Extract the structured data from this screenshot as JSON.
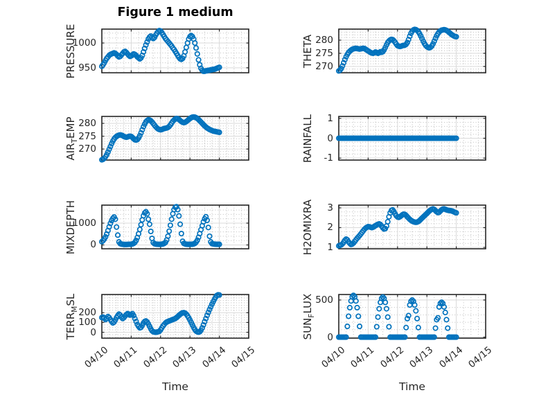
{
  "figure": {
    "title": "Figure 1 medium",
    "xlabel": "Time",
    "marker_color": "#0072BD",
    "background": "#ffffff",
    "axis_color": "#262626",
    "major_grid_color": "#d9d9d9",
    "minor_grid_color": "#bdbdbd"
  },
  "time_axis": {
    "tick_labels": [
      "04/10",
      "04/11",
      "04/12",
      "04/13",
      "04/14",
      "04/15"
    ],
    "tick_hours": [
      0,
      24,
      48,
      72,
      96,
      120
    ],
    "lim_hours": [
      0,
      120
    ],
    "minor_step_hours": 6
  },
  "chart_data": [
    {
      "name": "PRESSURE",
      "type": "scatter",
      "row": 1,
      "col": 1,
      "ylabel": {
        "pre": "PRESSURE",
        "sub": "",
        "post": ""
      },
      "yticks": [
        950,
        1000
      ],
      "ytick_labels": [
        "950",
        "1000"
      ],
      "ylim": [
        940,
        1028
      ],
      "y_minor_step": 10,
      "x_hours_start": 0,
      "x_hours_step": 1,
      "values": [
        953,
        956,
        960,
        965,
        969,
        972,
        975,
        977,
        978,
        979,
        980,
        979,
        977,
        974,
        972,
        973,
        976,
        979,
        982,
        983,
        981,
        978,
        975,
        973,
        974,
        976,
        978,
        977,
        975,
        972,
        970,
        968,
        970,
        975,
        982,
        989,
        996,
        1002,
        1008,
        1012,
        1014,
        1011,
        1009,
        1011,
        1016,
        1020,
        1023,
        1025,
        1024,
        1021,
        1017,
        1013,
        1009,
        1006,
        1003,
        1000,
        997,
        994,
        990,
        987,
        983,
        979,
        975,
        971,
        968,
        967,
        969,
        974,
        982,
        991,
        1000,
        1008,
        1013,
        1015,
        1013,
        1008,
        1000,
        990,
        978,
        966,
        956,
        949,
        945,
        943,
        943,
        944,
        944,
        945,
        945,
        946,
        946,
        947,
        947,
        948,
        949,
        950,
        951
      ]
    },
    {
      "name": "THETA",
      "type": "scatter",
      "row": 1,
      "col": 2,
      "ylabel": {
        "pre": "THETA",
        "sub": "",
        "post": ""
      },
      "yticks": [
        270,
        275,
        280
      ],
      "ytick_labels": [
        "270",
        "275",
        "280"
      ],
      "ylim": [
        267.6,
        284.2
      ],
      "y_minor_step": 1,
      "x_hours_start": 0,
      "x_hours_step": 1,
      "values": [
        268.3,
        268.6,
        269.2,
        270.2,
        271.4,
        272.6,
        273.7,
        274.6,
        275.3,
        275.8,
        276.2,
        276.5,
        276.7,
        276.8,
        276.9,
        276.8,
        276.7,
        276.6,
        276.7,
        276.8,
        276.9,
        276.8,
        276.5,
        276.2,
        275.9,
        275.6,
        275.3,
        275.1,
        275.0,
        275.2,
        275.5,
        275.3,
        275.0,
        275.2,
        275.6,
        275.4,
        275.6,
        276.3,
        277.2,
        278.2,
        279.1,
        279.7,
        280.1,
        280.3,
        280.2,
        279.8,
        279.2,
        278.5,
        277.9,
        277.7,
        277.6,
        277.7,
        277.9,
        278.0,
        278.1,
        278.4,
        279.1,
        280.2,
        281.5,
        282.6,
        283.4,
        283.9,
        284.1,
        284.0,
        283.7,
        283.2,
        282.5,
        281.6,
        280.6,
        279.6,
        278.7,
        278.0,
        277.5,
        277.2,
        277.1,
        277.3,
        277.8,
        278.6,
        279.6,
        280.7,
        281.7,
        282.5,
        283.1,
        283.5,
        283.8,
        283.9,
        284.0,
        283.9,
        283.7,
        283.4,
        283.0,
        282.6,
        282.2,
        281.9,
        281.6,
        281.4,
        281.3
      ]
    },
    {
      "name": "AIR_TEMP",
      "type": "scatter",
      "row": 2,
      "col": 1,
      "ylabel": {
        "pre": "AIR",
        "sub": "T",
        "post": "EMP"
      },
      "yticks": [
        270,
        275,
        280
      ],
      "ytick_labels": [
        "270",
        "275",
        "280"
      ],
      "ylim": [
        265.7,
        282.7
      ],
      "y_minor_step": 1,
      "x_hours_start": 0,
      "x_hours_step": 1,
      "values": [
        265.8,
        266.0,
        266.4,
        267.0,
        267.8,
        268.8,
        269.9,
        271.0,
        272.1,
        273.1,
        273.9,
        274.5,
        274.9,
        275.2,
        275.4,
        275.5,
        275.4,
        275.2,
        274.9,
        274.7,
        274.6,
        274.7,
        274.9,
        275.0,
        274.9,
        274.5,
        274.0,
        273.6,
        273.5,
        273.7,
        274.3,
        275.2,
        276.3,
        277.5,
        278.7,
        279.7,
        280.6,
        281.1,
        281.4,
        281.3,
        281.0,
        280.5,
        279.9,
        279.3,
        278.7,
        278.2,
        277.8,
        277.6,
        277.5,
        277.6,
        277.8,
        278.0,
        278.1,
        278.2,
        278.4,
        278.8,
        279.4,
        280.1,
        280.8,
        281.3,
        281.7,
        281.9,
        281.8,
        281.5,
        281.1,
        280.7,
        280.4,
        280.3,
        280.4,
        280.7,
        281.1,
        281.5,
        281.9,
        282.2,
        282.4,
        282.5,
        282.4,
        282.2,
        281.9,
        281.5,
        281.0,
        280.5,
        280.0,
        279.5,
        279.0,
        278.6,
        278.2,
        277.9,
        277.6,
        277.4,
        277.2,
        277.0,
        276.9,
        276.8,
        276.7,
        276.6,
        276.5
      ]
    },
    {
      "name": "RAINFALL",
      "type": "scatter",
      "row": 2,
      "col": 2,
      "ylabel": {
        "pre": "RAINFALL",
        "sub": "",
        "post": ""
      },
      "yticks": [
        -1,
        0,
        1
      ],
      "ytick_labels": [
        "-1",
        "0",
        "1"
      ],
      "ylim": [
        -1.1,
        1.1
      ],
      "y_minor_step": 0.2,
      "x_hours_start": 0,
      "x_hours_step": 1,
      "values": [
        0,
        0,
        0,
        0,
        0,
        0,
        0,
        0,
        0,
        0,
        0,
        0,
        0,
        0,
        0,
        0,
        0,
        0,
        0,
        0,
        0,
        0,
        0,
        0,
        0,
        0,
        0,
        0,
        0,
        0,
        0,
        0,
        0,
        0,
        0,
        0,
        0,
        0,
        0,
        0,
        0,
        0,
        0,
        0,
        0,
        0,
        0,
        0,
        0,
        0,
        0,
        0,
        0,
        0,
        0,
        0,
        0,
        0,
        0,
        0,
        0,
        0,
        0,
        0,
        0,
        0,
        0,
        0,
        0,
        0,
        0,
        0,
        0,
        0,
        0,
        0,
        0,
        0,
        0,
        0,
        0,
        0,
        0,
        0,
        0,
        0,
        0,
        0,
        0,
        0,
        0,
        0,
        0,
        0,
        0,
        0,
        0
      ]
    },
    {
      "name": "MIXDEPTH",
      "type": "scatter",
      "row": 3,
      "col": 1,
      "ylabel": {
        "pre": "MIXDEPTH",
        "sub": "",
        "post": ""
      },
      "yticks": [
        0,
        1000
      ],
      "ytick_labels": [
        "0",
        "1000"
      ],
      "ylim": [
        -175,
        1825
      ],
      "y_minor_step": 200,
      "x_hours_start": 0,
      "x_hours_step": 1,
      "values": [
        150,
        200,
        270,
        370,
        500,
        660,
        830,
        990,
        1120,
        1220,
        1280,
        1180,
        820,
        450,
        140,
        60,
        40,
        30,
        25,
        20,
        20,
        25,
        28,
        30,
        35,
        45,
        70,
        120,
        210,
        340,
        510,
        710,
        930,
        1150,
        1340,
        1470,
        1520,
        1430,
        1180,
        950,
        620,
        300,
        110,
        55,
        40,
        32,
        28,
        26,
        30,
        36,
        46,
        70,
        120,
        230,
        400,
        630,
        900,
        1180,
        1430,
        1620,
        1730,
        1750,
        1620,
        1330,
        950,
        520,
        170,
        70,
        45,
        33,
        28,
        26,
        28,
        30,
        34,
        45,
        72,
        125,
        215,
        350,
        520,
        700,
        880,
        1060,
        1200,
        1290,
        1130,
        800,
        400,
        140,
        60,
        45,
        38,
        33,
        30,
        28,
        28
      ]
    },
    {
      "name": "H2OMIXRA",
      "type": "scatter",
      "row": 3,
      "col": 2,
      "ylabel": {
        "pre": "H2OMIXRA",
        "sub": "",
        "post": ""
      },
      "yticks": [
        1,
        2,
        3
      ],
      "ytick_labels": [
        "1",
        "2",
        "3"
      ],
      "ylim": [
        0.93,
        3.14
      ],
      "y_minor_step": 0.2,
      "x_hours_start": 0,
      "x_hours_step": 1,
      "values": [
        1.08,
        1.1,
        1.13,
        1.18,
        1.26,
        1.36,
        1.42,
        1.38,
        1.28,
        1.2,
        1.15,
        1.17,
        1.22,
        1.3,
        1.38,
        1.46,
        1.53,
        1.6,
        1.68,
        1.76,
        1.84,
        1.92,
        1.98,
        2.02,
        2.05,
        2.04,
        2.02,
        2.0,
        2.02,
        2.06,
        2.1,
        2.14,
        2.17,
        2.19,
        2.16,
        2.08,
        1.99,
        1.93,
        1.95,
        2.08,
        2.3,
        2.55,
        2.75,
        2.87,
        2.9,
        2.82,
        2.7,
        2.6,
        2.54,
        2.52,
        2.55,
        2.6,
        2.65,
        2.68,
        2.67,
        2.62,
        2.55,
        2.48,
        2.42,
        2.37,
        2.33,
        2.3,
        2.28,
        2.27,
        2.28,
        2.31,
        2.36,
        2.42,
        2.48,
        2.54,
        2.6,
        2.66,
        2.72,
        2.78,
        2.84,
        2.89,
        2.93,
        2.95,
        2.92,
        2.86,
        2.8,
        2.76,
        2.78,
        2.84,
        2.9,
        2.94,
        2.95,
        2.93,
        2.9,
        2.88,
        2.87,
        2.86,
        2.85,
        2.83,
        2.8,
        2.77,
        2.75
      ]
    },
    {
      "name": "TERR_MSL",
      "type": "scatter",
      "row": 4,
      "col": 1,
      "ylabel": {
        "pre": "TERR",
        "sub": "M",
        "post": "SL"
      },
      "yticks": [
        0,
        100,
        200
      ],
      "ytick_labels": [
        "0",
        "100",
        "200"
      ],
      "ylim": [
        -60,
        385
      ],
      "y_minor_step": 25,
      "x_hours_start": 0,
      "x_hours_step": 1,
      "values": [
        150,
        155,
        145,
        130,
        140,
        160,
        150,
        130,
        110,
        95,
        105,
        125,
        150,
        170,
        185,
        175,
        155,
        140,
        150,
        165,
        180,
        190,
        185,
        175,
        180,
        190,
        170,
        140,
        110,
        80,
        60,
        45,
        50,
        70,
        95,
        110,
        115,
        105,
        85,
        60,
        35,
        15,
        5,
        2,
        0,
        2,
        5,
        10,
        25,
        45,
        65,
        80,
        95,
        105,
        110,
        115,
        120,
        125,
        130,
        135,
        140,
        150,
        160,
        172,
        183,
        192,
        198,
        200,
        195,
        185,
        168,
        148,
        125,
        100,
        75,
        50,
        28,
        12,
        4,
        1,
        5,
        20,
        45,
        75,
        108,
        140,
        172,
        203,
        232,
        260,
        287,
        312,
        336,
        358,
        375,
        382,
        380
      ]
    },
    {
      "name": "SUN_FLUX",
      "type": "scatter",
      "row": 4,
      "col": 2,
      "ylabel": {
        "pre": "SUN",
        "sub": "F",
        "post": "LUX"
      },
      "yticks": [
        0,
        500
      ],
      "ytick_labels": [
        "0",
        "500"
      ],
      "ylim": [
        -14,
        574
      ],
      "y_minor_step": 100,
      "x_hours_start": 0,
      "x_hours_step": 1,
      "values": [
        0,
        0,
        0,
        0,
        0,
        0,
        0,
        145,
        281,
        397,
        487,
        543,
        562,
        543,
        487,
        397,
        281,
        145,
        0,
        0,
        0,
        0,
        0,
        0,
        0,
        0,
        0,
        0,
        0,
        0,
        0,
        140,
        270,
        382,
        468,
        522,
        540,
        522,
        468,
        382,
        270,
        140,
        0,
        0,
        0,
        0,
        0,
        0,
        0,
        0,
        0,
        0,
        0,
        0,
        0,
        129,
        250,
        290,
        433,
        483,
        500,
        483,
        433,
        354,
        250,
        129,
        0,
        0,
        0,
        0,
        0,
        0,
        0,
        0,
        0,
        0,
        0,
        0,
        0,
        121,
        235,
        260,
        407,
        454,
        470,
        454,
        407,
        332,
        235,
        121,
        0,
        0,
        0,
        0,
        0,
        0,
        0
      ]
    }
  ]
}
